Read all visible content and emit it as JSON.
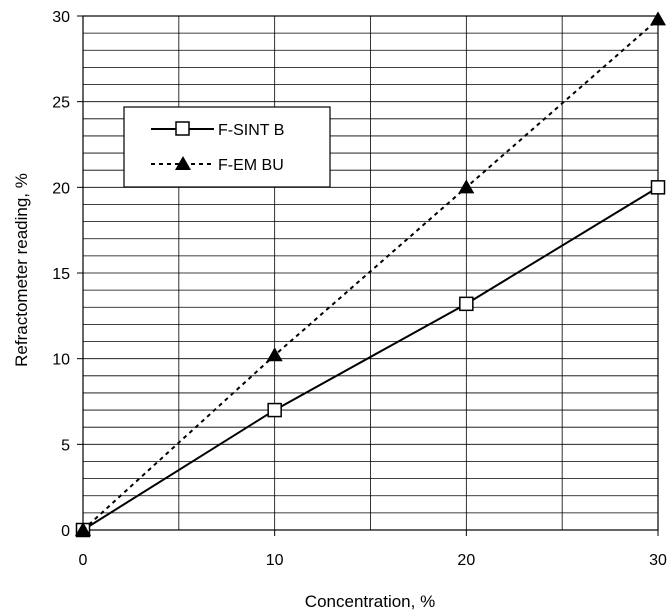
{
  "chart_data": {
    "type": "line",
    "title": "",
    "xlabel": "Concentration, %",
    "ylabel": "Refractometer reading, %",
    "xlim": [
      0,
      30
    ],
    "ylim": [
      0,
      30
    ],
    "x_ticks": [
      0,
      10,
      20,
      30
    ],
    "y_ticks": [
      0,
      5,
      10,
      15,
      20,
      25,
      30
    ],
    "x_tick_labels": [
      "0",
      "10",
      "20",
      "30"
    ],
    "y_tick_labels": [
      "0",
      "5",
      "10",
      "15",
      "20",
      "25",
      "30"
    ],
    "grid": {
      "x_major_step": 5,
      "y_minor_step": 1
    },
    "legend_placement": "upper-left",
    "series": [
      {
        "name": "F-SINT B",
        "line": "solid",
        "marker": "open-square",
        "x": [
          0,
          10,
          20,
          30
        ],
        "values": [
          0,
          7.0,
          13.2,
          20.0
        ]
      },
      {
        "name": "F-EM BU",
        "line": "dotted",
        "marker": "filled-triangle",
        "x": [
          0,
          10,
          20,
          30
        ],
        "values": [
          0,
          10.2,
          20.0,
          29.8
        ]
      }
    ]
  }
}
